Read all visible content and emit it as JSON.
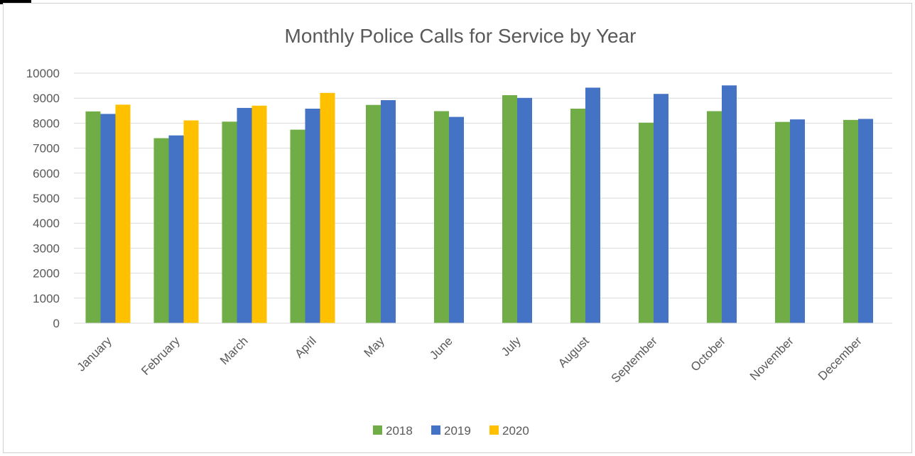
{
  "chart_data": {
    "type": "bar",
    "title": "Monthly Police Calls for Service by Year",
    "xlabel": "",
    "ylabel": "",
    "ylim": [
      0,
      10000
    ],
    "yticks": [
      0,
      1000,
      2000,
      3000,
      4000,
      5000,
      6000,
      7000,
      8000,
      9000,
      10000
    ],
    "grid": true,
    "legend_position": "bottom",
    "categories": [
      "January",
      "February",
      "March",
      "April",
      "May",
      "June",
      "July",
      "August",
      "September",
      "October",
      "November",
      "December"
    ],
    "series": [
      {
        "name": "2018",
        "color": "#70ad47",
        "values": [
          8470,
          7400,
          8060,
          7740,
          8730,
          8480,
          9120,
          8580,
          8020,
          8480,
          8050,
          8130
        ]
      },
      {
        "name": "2019",
        "color": "#4472c4",
        "values": [
          8370,
          7510,
          8610,
          8580,
          8920,
          8250,
          9010,
          9420,
          9170,
          9510,
          8150,
          8170
        ]
      },
      {
        "name": "2020",
        "color": "#ffc000",
        "values": [
          8740,
          8110,
          8700,
          9210,
          null,
          null,
          null,
          null,
          null,
          null,
          null,
          null
        ]
      }
    ]
  }
}
